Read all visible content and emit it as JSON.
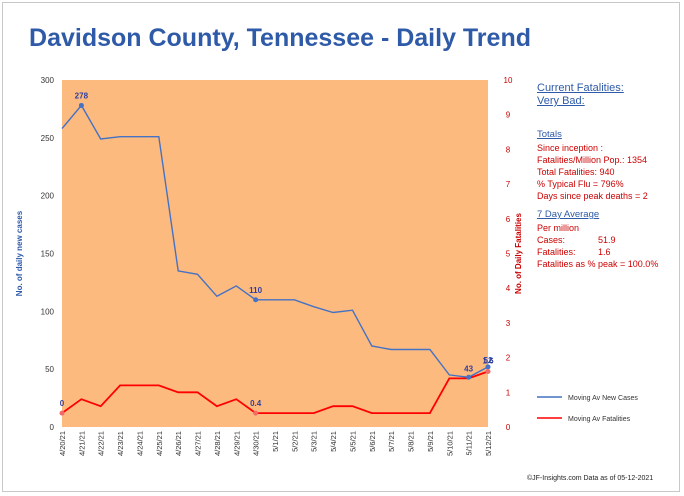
{
  "title": "Davidson County, Tennessee - Daily Trend",
  "colors": {
    "plot_bg": "#fdba7f",
    "cases": "#4472c4",
    "fatalities": "#ff0000",
    "title": "#2e5aa8",
    "panel_text": "#cc0000"
  },
  "chart_data": {
    "type": "line",
    "categories": [
      "4/20/21",
      "4/21/21",
      "4/22/21",
      "4/23/21",
      "4/24/21",
      "4/25/21",
      "4/26/21",
      "4/27/21",
      "4/28/21",
      "4/29/21",
      "4/30/21",
      "5/1/21",
      "5/2/21",
      "5/3/21",
      "5/4/21",
      "5/5/21",
      "5/6/21",
      "5/7/21",
      "5/8/21",
      "5/9/21",
      "5/10/21",
      "5/11/21",
      "5/12/21"
    ],
    "series": [
      {
        "name": "Moving Av New Cases",
        "axis": "left",
        "values": [
          258,
          278,
          249,
          251,
          251,
          251,
          135,
          132,
          113,
          122,
          110,
          110,
          110,
          104,
          99,
          101,
          70,
          67,
          67,
          67,
          45,
          43,
          52
        ]
      },
      {
        "name": "Moving Av Fatalities",
        "axis": "right",
        "values": [
          0.4,
          0.8,
          0.6,
          1.2,
          1.2,
          1.2,
          1.0,
          1.0,
          0.6,
          0.8,
          0.4,
          0.4,
          0.4,
          0.4,
          0.6,
          0.6,
          0.4,
          0.4,
          0.4,
          0.4,
          1.4,
          1.4,
          1.6
        ]
      }
    ],
    "data_labels": [
      {
        "series": 0,
        "index": 1,
        "text": "278"
      },
      {
        "series": 0,
        "index": 10,
        "text": "110"
      },
      {
        "series": 0,
        "index": 21,
        "text": "43"
      },
      {
        "series": 0,
        "index": 22,
        "text": "52"
      },
      {
        "series": 1,
        "index": 0,
        "text": "0"
      },
      {
        "series": 1,
        "index": 10,
        "text": "0.4"
      },
      {
        "series": 1,
        "index": 22,
        "text": "1.6"
      }
    ],
    "y_left": {
      "label": "No. of daily new  cases",
      "min": 0,
      "max": 300,
      "ticks": [
        0,
        50,
        100,
        150,
        200,
        250,
        300
      ]
    },
    "y_right": {
      "label": "No. of Daily Fatalities",
      "min": 0,
      "max": 10,
      "ticks": [
        0,
        1,
        2,
        3,
        4,
        5,
        6,
        7,
        8,
        9,
        10
      ]
    },
    "legend_position": "bottom-right"
  },
  "panel": {
    "current_title_1": "Current Fatalities:",
    "current_title_2": "Very Bad:",
    "totals_header": "Totals",
    "since_inception": "Since inception :",
    "fatalities_per_million": "Fatalities/Million Pop.: 1354",
    "total_fatalities": "Total Fatalities: 940",
    "typical_flu": "% Typical Flu = 796%",
    "days_since_peak": "Days since peak deaths = 2",
    "avg_header": "7 Day Average",
    "per_million": "Per million",
    "cases_label": "Cases:",
    "cases_value": "51.9",
    "fatalities_label": "Fatalities:",
    "fatalities_value": "1.6",
    "pct_peak": "Fatalities as % peak = 100.0%"
  },
  "footer": "©JF-Insights.com  Data as of 05-12-2021"
}
